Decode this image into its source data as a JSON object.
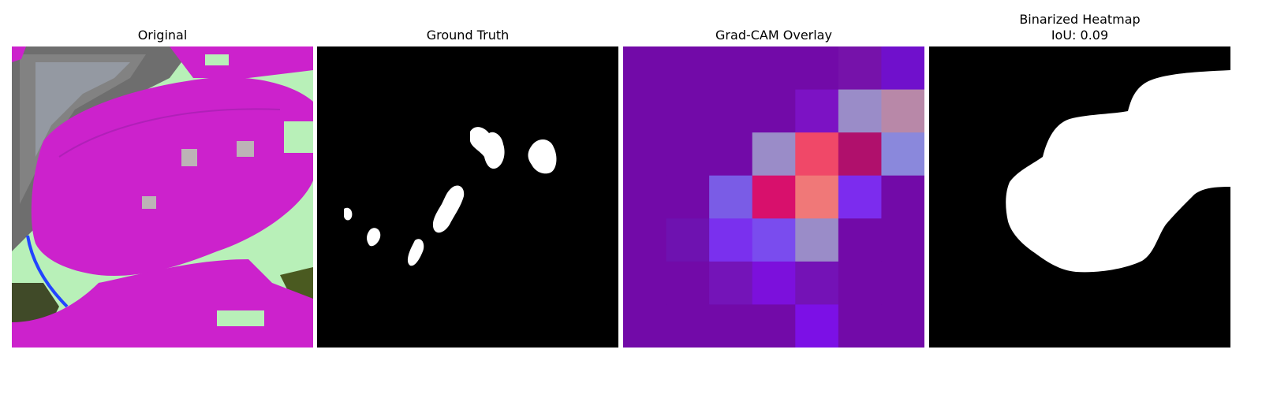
{
  "panels": [
    {
      "title": "Original"
    },
    {
      "title": "Ground Truth"
    },
    {
      "title": "Grad-CAM Overlay"
    },
    {
      "title": "Binarized Heatmap",
      "subtitle": "IoU: 0.09"
    }
  ],
  "colors": {
    "leaf": "#cc22cc",
    "background_green": "#b8f0b8",
    "mask_white": "#ffffff",
    "mask_black": "#000000",
    "overlay_base": "#7a0ab0"
  },
  "gradcam_grid": [
    [
      "#720aa8",
      "#720aa8",
      "#720aa8",
      "#720aa8",
      "#720aa8",
      "#7612aa",
      "#7010cc"
    ],
    [
      "#720aa8",
      "#720aa8",
      "#720aa8",
      "#720aa8",
      "#7c12c4",
      "#9a8cc8",
      "#b888a8"
    ],
    [
      "#720aa8",
      "#720aa8",
      "#720aa8",
      "#9a8cc8",
      "#f04868",
      "#b0106c",
      "#8a88dc"
    ],
    [
      "#720aa8",
      "#720aa8",
      "#7a5ce6",
      "#d8106c",
      "#f07878",
      "#7c2cee",
      "#720aa8"
    ],
    [
      "#720aa8",
      "#6e12b0",
      "#7a30ee",
      "#7a4cee",
      "#9a8cc8",
      "#720aa8",
      "#720aa8"
    ],
    [
      "#720aa8",
      "#720aa8",
      "#7414b8",
      "#7c10dc",
      "#7412b6",
      "#720aa8",
      "#720aa8"
    ],
    [
      "#720aa8",
      "#720aa8",
      "#720aa8",
      "#720aa8",
      "#7c10e6",
      "#720aa8",
      "#720aa8"
    ]
  ]
}
